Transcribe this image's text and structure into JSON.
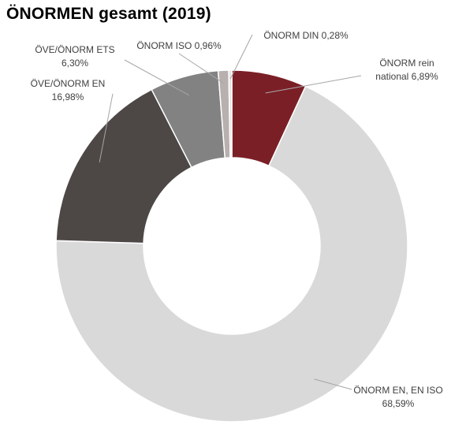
{
  "chart_data": {
    "type": "pie",
    "variant": "donut",
    "title": "ÖNORMEN gesamt (2019)",
    "categories": [
      "ÖNORM rein national",
      "ÖNORM EN, EN ISO",
      "ÖVE/ÖNORM EN",
      "ÖVE/ÖNORM ETS",
      "ÖNORM ISO",
      "ÖNORM DIN"
    ],
    "values": [
      6.89,
      68.59,
      16.98,
      6.3,
      0.96,
      0.28
    ],
    "value_labels": [
      "6,89%",
      "68,59%",
      "16,98%",
      "6,30%",
      "0,96%",
      "0,28%"
    ],
    "colors": [
      "#7b1f26",
      "#d9d9d9",
      "#4d4846",
      "#828282",
      "#b8b0ae",
      "#e8e2e0"
    ],
    "legend": "none"
  }
}
